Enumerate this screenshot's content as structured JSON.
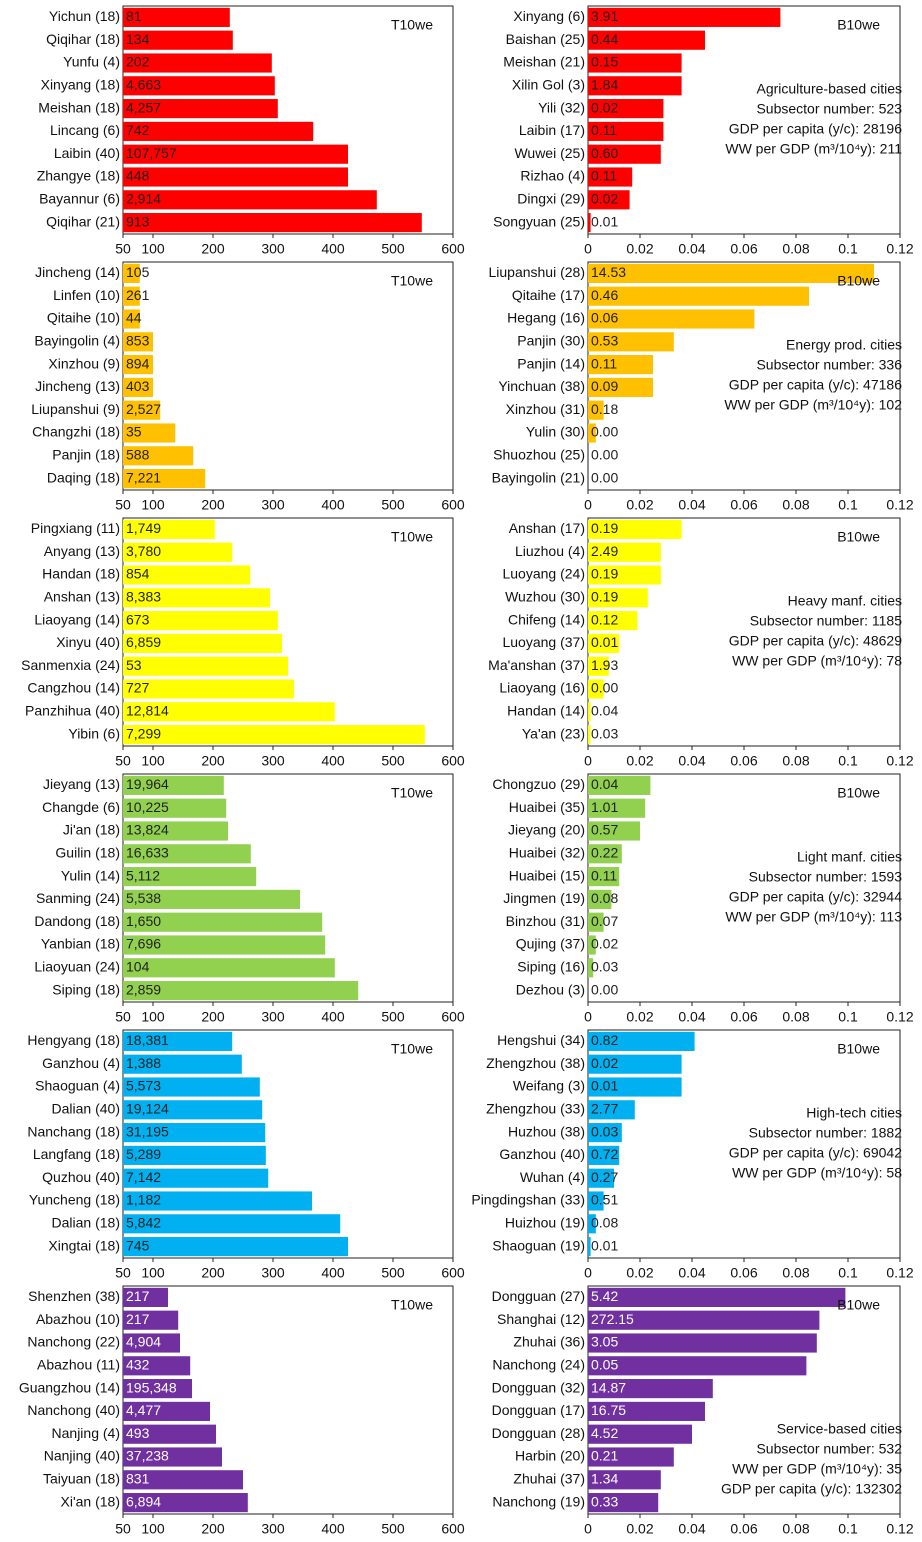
{
  "chart_data": [
    {
      "type": "hbar",
      "tag": "T10we",
      "color": "#ff0000",
      "label_color": "#222222",
      "xlim": [
        50,
        600
      ],
      "xticks": [
        50,
        100,
        200,
        300,
        400,
        500,
        600
      ],
      "categories": [
        "Yichun (18)",
        "Qiqihar (18)",
        "Yunfu (4)",
        "Xinyang (18)",
        "Meishan (18)",
        "Lincang (6)",
        "Laibin (40)",
        "Zhangye (18)",
        "Bayannur (6)",
        "Qiqihar (21)"
      ],
      "values": [
        228,
        233,
        298,
        303,
        308,
        367,
        425,
        425,
        473,
        548
      ],
      "bar_labels": [
        "81",
        "134",
        "202",
        "4,663",
        "4,257",
        "742",
        "107,757",
        "448",
        "2,914",
        "913"
      ],
      "annotations": []
    },
    {
      "type": "hbar",
      "tag": "B10we",
      "color": "#ff0000",
      "label_color": "#222222",
      "xlim": [
        0,
        0.12
      ],
      "xticks": [
        0,
        0.02,
        0.04,
        0.06,
        0.08,
        0.1,
        0.12
      ],
      "categories": [
        "Xinyang (6)",
        "Baishan (25)",
        "Meishan (21)",
        "Xilin Gol (3)",
        "Yili (32)",
        "Laibin (17)",
        "Wuwei (25)",
        "Rizhao (4)",
        "Dingxi (29)",
        "Songyuan (25)"
      ],
      "values": [
        0.074,
        0.045,
        0.036,
        0.036,
        0.029,
        0.029,
        0.028,
        0.017,
        0.016,
        0.001
      ],
      "bar_labels": [
        "3.91",
        "0.44",
        "0.15",
        "1.84",
        "0.02",
        "0.11",
        "0.60",
        "0.11",
        "0.02",
        "0.01"
      ],
      "annotations": [
        "Agriculture-based cities",
        "Subsector number: 523",
        "GDP per capita (y/c): 28196",
        "WW per GDP (m³/10⁴y): 211"
      ]
    },
    {
      "type": "hbar",
      "tag": "T10we",
      "color": "#ffc000",
      "label_color": "#222222",
      "xlim": [
        50,
        600
      ],
      "xticks": [
        50,
        100,
        200,
        300,
        400,
        500,
        600
      ],
      "categories": [
        "Jincheng (14)",
        "Linfen (10)",
        "Qitaihe (10)",
        "Bayingolin (4)",
        "Xinzhou (9)",
        "Jincheng (13)",
        "Liupanshui (9)",
        "Changzhi (18)",
        "Panjin (18)",
        "Daqing (18)"
      ],
      "values": [
        78,
        78,
        78,
        100,
        100,
        100,
        112,
        137,
        167,
        187
      ],
      "bar_labels": [
        "105",
        "261",
        "44",
        "853",
        "894",
        "403",
        "2,527",
        "35",
        "588",
        "7,221"
      ],
      "annotations": []
    },
    {
      "type": "hbar",
      "tag": "B10we",
      "color": "#ffc000",
      "label_color": "#222222",
      "xlim": [
        0,
        0.12
      ],
      "xticks": [
        0,
        0.02,
        0.04,
        0.06,
        0.08,
        0.1,
        0.12
      ],
      "categories": [
        "Liupanshui (28)",
        "Qitaihe (17)",
        "Hegang (16)",
        "Panjin (30)",
        "Panjin (14)",
        "Yinchuan (38)",
        "Xinzhou (31)",
        "Yulin (30)",
        "Shuozhou (25)",
        "Bayingolin (21)"
      ],
      "values": [
        0.11,
        0.085,
        0.064,
        0.033,
        0.025,
        0.025,
        0.006,
        0.003,
        0,
        0
      ],
      "bar_labels": [
        "14.53",
        "0.46",
        "0.06",
        "0.53",
        "0.11",
        "0.09",
        "0.18",
        "0.00",
        "0.00",
        "0.00"
      ],
      "annotations": [
        "Energy prod. cities",
        "Subsector number: 336",
        "GDP per capita (y/c): 47186",
        "WW per GDP (m³/10⁴y): 102"
      ]
    },
    {
      "type": "hbar",
      "tag": "T10we",
      "color": "#ffff00",
      "label_color": "#222222",
      "xlim": [
        50,
        600
      ],
      "xticks": [
        50,
        100,
        200,
        300,
        400,
        500,
        600
      ],
      "categories": [
        "Pingxiang (11)",
        "Anyang (13)",
        "Handan (18)",
        "Anshan (13)",
        "Liaoyang (14)",
        "Xinyu (40)",
        "Sanmenxia (24)",
        "Cangzhou (14)",
        "Panzhihua (40)",
        "Yibin (6)"
      ],
      "values": [
        203,
        232,
        262,
        295,
        308,
        315,
        325,
        335,
        403,
        553
      ],
      "bar_labels": [
        "1,749",
        "3,780",
        "854",
        "8,383",
        "673",
        "6,859",
        "53",
        "727",
        "12,814",
        "7,299"
      ],
      "annotations": []
    },
    {
      "type": "hbar",
      "tag": "B10we",
      "color": "#ffff00",
      "label_color": "#222222",
      "xlim": [
        0,
        0.12
      ],
      "xticks": [
        0,
        0.02,
        0.04,
        0.06,
        0.08,
        0.1,
        0.12
      ],
      "categories": [
        "Anshan (17)",
        "Liuzhou (4)",
        "Luoyang (24)",
        "Wuzhou (30)",
        "Chifeng (14)",
        "Luoyang (37)",
        "Ma'anshan (37)",
        "Liaoyang (16)",
        "Handan (14)",
        "Ya'an (23)"
      ],
      "values": [
        0.036,
        0.028,
        0.028,
        0.023,
        0.019,
        0.012,
        0.008,
        0.006,
        0.001,
        0.001
      ],
      "bar_labels": [
        "0.19",
        "2.49",
        "0.19",
        "0.19",
        "0.12",
        "0.01",
        "1.93",
        "0.00",
        "0.04",
        "0.03"
      ],
      "annotations": [
        "Heavy manf. cities",
        "Subsector number: 1185",
        "GDP per capita (y/c): 48629",
        "WW per GDP (m³/10⁴y): 78"
      ]
    },
    {
      "type": "hbar",
      "tag": "T10we",
      "color": "#92d050",
      "label_color": "#222222",
      "xlim": [
        50,
        600
      ],
      "xticks": [
        50,
        100,
        200,
        300,
        400,
        500,
        600
      ],
      "categories": [
        "Jieyang (13)",
        "Changde (6)",
        "Ji'an (18)",
        "Guilin (18)",
        "Yulin (14)",
        "Sanming (24)",
        "Dandong (18)",
        "Yanbian (18)",
        "Liaoyuan (24)",
        "Siping (18)"
      ],
      "values": [
        218,
        222,
        225,
        263,
        272,
        345,
        382,
        387,
        403,
        442
      ],
      "bar_labels": [
        "19,964",
        "10,225",
        "13,824",
        "16,633",
        "5,112",
        "5,538",
        "1,650",
        "7,696",
        "104",
        "2,859"
      ],
      "annotations": []
    },
    {
      "type": "hbar",
      "tag": "B10we",
      "color": "#92d050",
      "label_color": "#222222",
      "xlim": [
        0,
        0.12
      ],
      "xticks": [
        0,
        0.02,
        0.04,
        0.06,
        0.08,
        0.1,
        0.12
      ],
      "categories": [
        "Chongzuo (29)",
        "Huaibei (35)",
        "Jieyang (20)",
        "Huaibei (32)",
        "Huaibei (15)",
        "Jingmen (19)",
        "Binzhou (31)",
        "Qujing (37)",
        "Siping (16)",
        "Dezhou (3)"
      ],
      "values": [
        0.024,
        0.022,
        0.02,
        0.013,
        0.012,
        0.009,
        0.006,
        0.003,
        0.002,
        0
      ],
      "bar_labels": [
        "0.04",
        "1.01",
        "0.57",
        "0.22",
        "0.11",
        "0.08",
        "0.07",
        "0.02",
        "0.03",
        "0.00"
      ],
      "annotations": [
        "Light manf. cities",
        "Subsector number: 1593",
        "GDP per capita (y/c): 32944",
        "WW per GDP (m³/10⁴y): 113"
      ]
    },
    {
      "type": "hbar",
      "tag": "T10we",
      "color": "#00b0f0",
      "label_color": "#222222",
      "xlim": [
        50,
        600
      ],
      "xticks": [
        50,
        100,
        200,
        300,
        400,
        500,
        600
      ],
      "categories": [
        "Hengyang (18)",
        "Ganzhou (4)",
        "Shaoguan (4)",
        "Dalian (40)",
        "Nanchang (18)",
        "Langfang (18)",
        "Quzhou (40)",
        "Yuncheng (18)",
        "Dalian (18)",
        "Xingtai (18)"
      ],
      "values": [
        232,
        248,
        278,
        282,
        287,
        288,
        292,
        365,
        412,
        425
      ],
      "bar_labels": [
        "18,381",
        "1,388",
        "5,573",
        "19,124",
        "31,195",
        "5,289",
        "7,142",
        "1,182",
        "5,842",
        "745"
      ],
      "annotations": []
    },
    {
      "type": "hbar",
      "tag": "B10we",
      "color": "#00b0f0",
      "label_color": "#222222",
      "xlim": [
        0,
        0.12
      ],
      "xticks": [
        0,
        0.02,
        0.04,
        0.06,
        0.08,
        0.1,
        0.12
      ],
      "categories": [
        "Hengshui (34)",
        "Zhengzhou (38)",
        "Weifang (3)",
        "Zhengzhou (33)",
        "Huzhou (38)",
        "Ganzhou (40)",
        "Wuhan (4)",
        "Pingdingshan (33)",
        "Huizhou (19)",
        "Shaoguan (19)"
      ],
      "values": [
        0.041,
        0.036,
        0.036,
        0.018,
        0.013,
        0.012,
        0.01,
        0.006,
        0.003,
        0.001
      ],
      "bar_labels": [
        "0.82",
        "0.02",
        "0.01",
        "2.77",
        "0.03",
        "0.72",
        "0.27",
        "0.51",
        "0.08",
        "0.01"
      ],
      "annotations": [
        "High-tech cities",
        "Subsector number: 1882",
        "GDP per capita (y/c): 69042",
        "WW per GDP (m³/10⁴y): 58"
      ]
    },
    {
      "type": "hbar",
      "tag": "T10we",
      "color": "#7030a0",
      "label_color": "#ffffff",
      "xlim": [
        50,
        600
      ],
      "xticks": [
        50,
        100,
        200,
        300,
        400,
        500,
        600
      ],
      "categories": [
        "Shenzhen (38)",
        "Abazhou (10)",
        "Nanchong (22)",
        "Abazhou (11)",
        "Guangzhou (14)",
        "Nanchong (40)",
        "Nanjing (4)",
        "Nanjing (40)",
        "Taiyuan (18)",
        "Xi'an (18)"
      ],
      "values": [
        125,
        142,
        145,
        162,
        165,
        195,
        205,
        215,
        250,
        258
      ],
      "bar_labels": [
        "217",
        "217",
        "4,904",
        "432",
        "195,348",
        "4,477",
        "493",
        "37,238",
        "831",
        "6,894"
      ],
      "annotations": []
    },
    {
      "type": "hbar",
      "tag": "B10we",
      "color": "#7030a0",
      "label_color": "#ffffff",
      "xlim": [
        0,
        0.12
      ],
      "xticks": [
        0,
        0.02,
        0.04,
        0.06,
        0.08,
        0.1,
        0.12
      ],
      "categories": [
        "Dongguan (27)",
        "Shanghai (12)",
        "Zhuhai (36)",
        "Nanchong (24)",
        "Dongguan (32)",
        "Dongguan (17)",
        "Dongguan (28)",
        "Harbin (20)",
        "Zhuhai (37)",
        "Nanchong (19)"
      ],
      "values": [
        0.099,
        0.089,
        0.088,
        0.084,
        0.048,
        0.045,
        0.04,
        0.033,
        0.028,
        0.027
      ],
      "bar_labels": [
        "5.42",
        "272.15",
        "3.05",
        "0.05",
        "14.87",
        "16.75",
        "4.52",
        "0.21",
        "1.34",
        "0.33"
      ],
      "annotations": [
        "Service-based cities",
        "Subsector number: 532",
        "WW per GDP (m³/10⁴y): 35",
        "GDP per capita (y/c): 132302"
      ]
    }
  ]
}
